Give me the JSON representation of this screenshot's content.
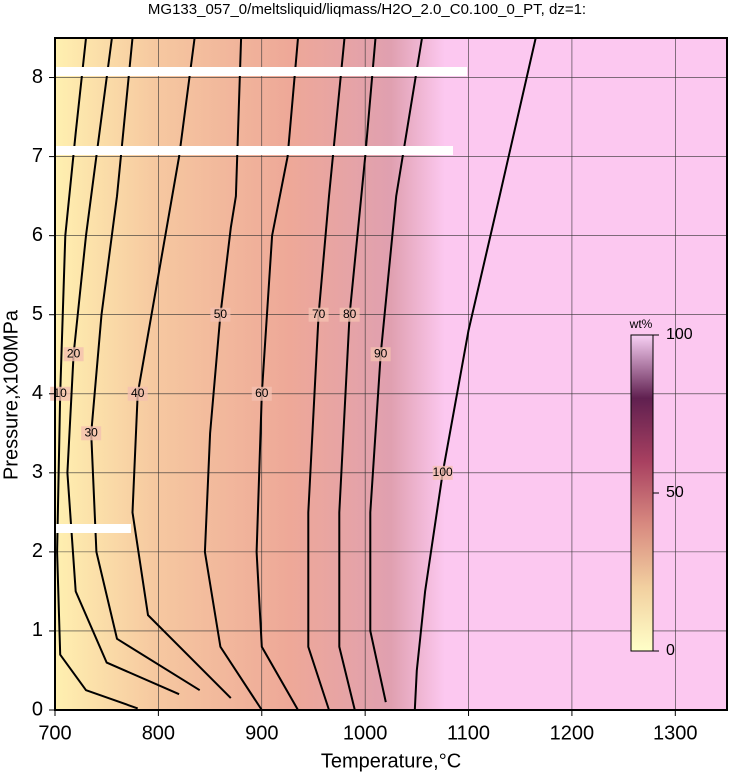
{
  "chart_data": {
    "type": "contour",
    "title": "MG133_057_0/meltsliquid/liqmass/H2O_2.0_C0.100_0_PT, dz=1:",
    "x_label": "Temperature,°C",
    "y_label": "Pressure,x100MPa",
    "xlim": [
      700,
      1350
    ],
    "ylim": [
      0,
      8.5
    ],
    "xticks": [
      700,
      800,
      900,
      1000,
      1100,
      1200,
      1300
    ],
    "yticks": [
      0,
      1,
      2,
      3,
      4,
      5,
      6,
      7,
      8
    ],
    "grid": true,
    "line_color": "#000000",
    "series": [
      {
        "name": "10",
        "x": [
          780,
          730,
          705,
          702,
          705,
          710,
          720,
          730
        ],
        "values": [
          0.02,
          0.25,
          0.7,
          2,
          4,
          6,
          7.3,
          8.5
        ]
      },
      {
        "name": "20",
        "x": [
          820,
          750,
          720,
          712,
          718,
          730,
          745,
          755
        ],
        "values": [
          0.2,
          0.6,
          1.5,
          3,
          4.5,
          6,
          7.5,
          8.5
        ]
      },
      {
        "name": "30",
        "x": [
          840,
          760,
          740,
          735,
          745,
          760,
          775
        ],
        "values": [
          0.25,
          0.9,
          2,
          3.5,
          5,
          6.5,
          8.5
        ]
      },
      {
        "name": "40",
        "x": [
          870,
          790,
          775,
          780,
          800,
          820,
          835
        ],
        "values": [
          0.15,
          1.2,
          2.5,
          4,
          5.5,
          7,
          8.5
        ]
      },
      {
        "name": "50",
        "x": [
          900,
          860,
          845,
          850,
          860,
          870,
          875,
          880
        ],
        "values": [
          0,
          0.8,
          2,
          3.5,
          5,
          6.1,
          6.5,
          8.5
        ]
      },
      {
        "name": "60",
        "x": [
          935,
          900,
          895,
          900,
          910,
          925,
          935
        ],
        "values": [
          0,
          0.8,
          2,
          4,
          6,
          7,
          8.5
        ]
      },
      {
        "name": "70",
        "x": [
          965,
          945,
          945,
          955,
          965,
          980
        ],
        "values": [
          0,
          0.8,
          2.5,
          5,
          6.5,
          8.5
        ]
      },
      {
        "name": "80",
        "x": [
          990,
          975,
          975,
          985,
          1000,
          1010
        ],
        "values": [
          0,
          0.8,
          2.5,
          5,
          7,
          8.5
        ]
      },
      {
        "name": "90",
        "x": [
          1020,
          1005,
          1005,
          1015,
          1030,
          1055
        ],
        "values": [
          0.1,
          1,
          2.5,
          4.5,
          6.5,
          8.5
        ]
      },
      {
        "name": "100",
        "x": [
          1048,
          1050,
          1058,
          1075,
          1100,
          1130,
          1165
        ],
        "values": [
          0,
          0.5,
          1.5,
          3,
          4.8,
          6.5,
          8.5
        ]
      }
    ],
    "colorbar": {
      "label": "wt%",
      "lim": [
        0,
        100
      ],
      "ticks": [
        0,
        50,
        100
      ],
      "colors": [
        "#ffffc8",
        "#f2d0a0",
        "#d88a80",
        "#a84060",
        "#602050",
        "#f8d0f4"
      ]
    }
  }
}
